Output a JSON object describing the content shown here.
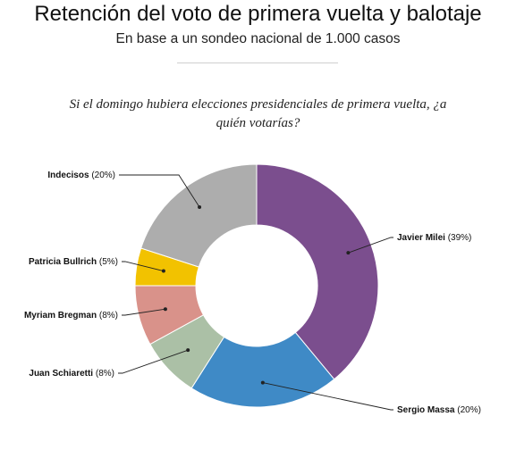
{
  "header": {
    "title": "Retención del voto de primera vuelta y balotaje",
    "subtitle": "En base a un sondeo nacional de 1.000 casos"
  },
  "question": "Si el domingo hubiera elecciones presidenciales de primera vuelta, ¿a quién votarías?",
  "chart_data": {
    "type": "pie",
    "donut": true,
    "slices": [
      {
        "label": "Javier Milei",
        "value": 39,
        "display": "(39%)",
        "color": "#7b4e8e"
      },
      {
        "label": "Sergio Massa",
        "value": 20,
        "display": "(20%)",
        "color": "#3f8ac6"
      },
      {
        "label": "Juan Schiaretti",
        "value": 8,
        "display": "(8%)",
        "color": "#abc0a6"
      },
      {
        "label": "Myriam Bregman",
        "value": 8,
        "display": "(8%)",
        "color": "#d9928a"
      },
      {
        "label": "Patricia Bullrich",
        "value": 5,
        "display": "(5%)",
        "color": "#f2c200"
      },
      {
        "label": "Indecisos",
        "value": 20,
        "display": "(20%)",
        "color": "#adadad"
      }
    ],
    "legend": "callout labels beside slices"
  }
}
